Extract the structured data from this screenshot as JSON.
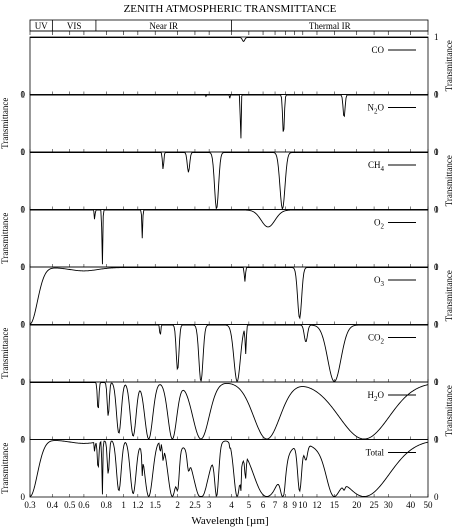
{
  "chart_data": {
    "type": "line",
    "title": "ZENITH ATMOSPHERIC TRANSMITTANCE",
    "xlabel": "Wavelength [µm]",
    "ylabel": "Transmittance",
    "x_scale": "log",
    "xlim": [
      0.3,
      50
    ],
    "x_ticks": [
      "0.3",
      "0.4",
      "0.5",
      "0.6",
      "0.8",
      "1",
      "1.2",
      "1.5",
      "2",
      "2.5",
      "3",
      "4",
      "5",
      "6",
      "7",
      "8",
      "9",
      "10",
      "12",
      "15",
      "20",
      "25",
      "30",
      "40",
      "50"
    ],
    "x_tick_values": [
      0.3,
      0.4,
      0.5,
      0.6,
      0.8,
      1,
      1.2,
      1.5,
      2,
      2.5,
      3,
      4,
      5,
      6,
      7,
      8,
      9,
      10,
      12,
      15,
      20,
      25,
      30,
      40,
      50
    ],
    "bands": [
      {
        "label": "UV",
        "from": 0.3,
        "to": 0.4
      },
      {
        "label": "VIS",
        "from": 0.4,
        "to": 0.7
      },
      {
        "label": "Near IR",
        "from": 0.7,
        "to": 4
      },
      {
        "label": "Thermal IR",
        "from": 4,
        "to": 50
      }
    ],
    "ylim": [
      0,
      1
    ],
    "y_tick_left": [
      "0",
      "1"
    ],
    "y_tick_right": [
      "0",
      "1"
    ],
    "series": [
      {
        "name": "CO",
        "mathname": "CO",
        "sub": "",
        "features": [
          [
            4.67,
            0.1,
            0.07
          ]
        ]
      },
      {
        "name": "N2O",
        "mathname": "N",
        "sub": "2",
        "after": "O",
        "features": [
          [
            2.87,
            0.006,
            0.2
          ],
          [
            3.9,
            0.01,
            0.3
          ],
          [
            4.5,
            0.03,
            1.0
          ],
          [
            7.8,
            0.12,
            0.7
          ],
          [
            17,
            0.3,
            0.4
          ]
        ]
      },
      {
        "name": "CH4",
        "mathname": "CH",
        "sub": "4",
        "features": [
          [
            1.66,
            0.02,
            0.3
          ],
          [
            2.3,
            0.05,
            0.35
          ],
          [
            3.3,
            0.12,
            1.0
          ],
          [
            7.7,
            0.35,
            1.0
          ]
        ]
      },
      {
        "name": "O2",
        "mathname": "O",
        "sub": "2",
        "features": [
          [
            0.69,
            0.003,
            0.4
          ],
          [
            0.76,
            0.006,
            1.0
          ],
          [
            1.27,
            0.01,
            0.5
          ],
          [
            6.4,
            0.8,
            0.3
          ]
        ]
      },
      {
        "name": "O3",
        "mathname": "O",
        "sub": "3",
        "features": [
          [
            0.3,
            0.04,
            1.0
          ],
          [
            0.6,
            0.15,
            0.06
          ],
          [
            4.75,
            0.05,
            0.25
          ],
          [
            9.6,
            0.35,
            0.9
          ]
        ]
      },
      {
        "name": "CO2",
        "mathname": "CO",
        "sub": "2",
        "features": [
          [
            1.6,
            0.015,
            0.2
          ],
          [
            2.0,
            0.05,
            0.8
          ],
          [
            2.7,
            0.1,
            1.0
          ],
          [
            4.3,
            0.25,
            1.0
          ],
          [
            4.8,
            0.05,
            0.5
          ],
          [
            10.4,
            0.3,
            0.3
          ],
          [
            15,
            1.8,
            1.0
          ]
        ]
      },
      {
        "name": "H2O",
        "mathname": "H",
        "sub": "2",
        "after": "O",
        "features": [
          [
            0.72,
            0.01,
            0.5
          ],
          [
            0.82,
            0.015,
            0.6
          ],
          [
            0.94,
            0.04,
            0.9
          ],
          [
            1.13,
            0.06,
            0.95
          ],
          [
            1.38,
            0.1,
            1.0
          ],
          [
            1.87,
            0.15,
            1.0
          ],
          [
            2.7,
            0.4,
            1.0
          ],
          [
            6.3,
            1.5,
            1.0
          ],
          [
            22,
            10,
            1.0
          ]
        ]
      },
      {
        "name": "Total",
        "mathname": "Total",
        "sub": ""
      }
    ]
  }
}
